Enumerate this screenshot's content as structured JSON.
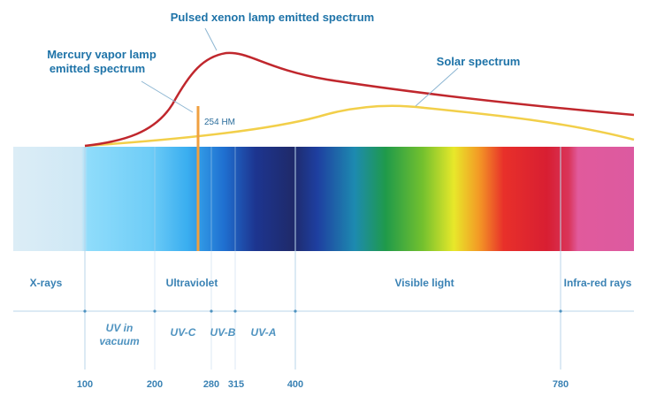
{
  "labels": {
    "xenon": "Pulsed xenon lamp emitted spectrum",
    "mercury_line1": "Mercury vapor lamp",
    "mercury_line2": "emitted spectrum",
    "solar": "Solar spectrum",
    "mercury_peak": "254 HM"
  },
  "bands": {
    "xrays": "X-rays",
    "ultraviolet": "Ultraviolet",
    "visible": "Visible light",
    "infrared": "Infra-red rays"
  },
  "uv_subbands": {
    "uv_vacuum_line1": "UV in",
    "uv_vacuum_line2": "vacuum",
    "uvc": "UV-C",
    "uvb": "UV-B",
    "uva": "UV-A"
  },
  "ticks": [
    "100",
    "200",
    "280",
    "315",
    "400",
    "780"
  ],
  "colors": {
    "xenon_curve": "#c0272d",
    "solar_curve": "#f2cf4a",
    "mercury_line": "#f0a040",
    "label_blue": "#1e73a8",
    "divider": "#b9d6ea"
  }
}
